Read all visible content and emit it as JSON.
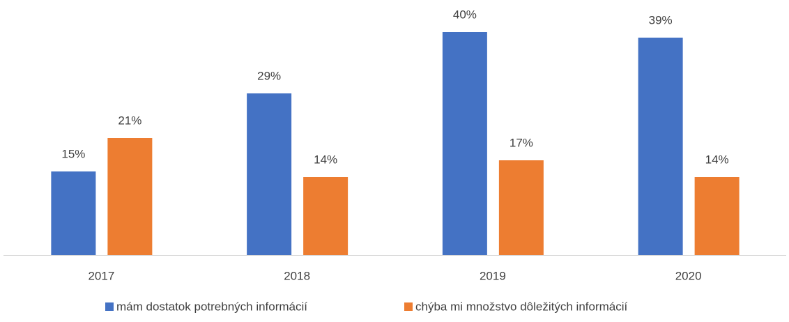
{
  "chart_data": {
    "type": "bar",
    "categories": [
      "2017",
      "2018",
      "2019",
      "2020"
    ],
    "series": [
      {
        "name": "mám dostatok potrebných informácií",
        "color": "#4472c4",
        "values": [
          15,
          29,
          40,
          39
        ],
        "value_labels": [
          "15%",
          "29%",
          "40%",
          "39%"
        ]
      },
      {
        "name": "chýba mi množstvo dôležitých informácií",
        "color": "#ed7d31",
        "values": [
          21,
          14,
          17,
          14
        ],
        "value_labels": [
          "21%",
          "14%",
          "17%",
          "14%"
        ]
      }
    ],
    "legend": "bottom"
  }
}
